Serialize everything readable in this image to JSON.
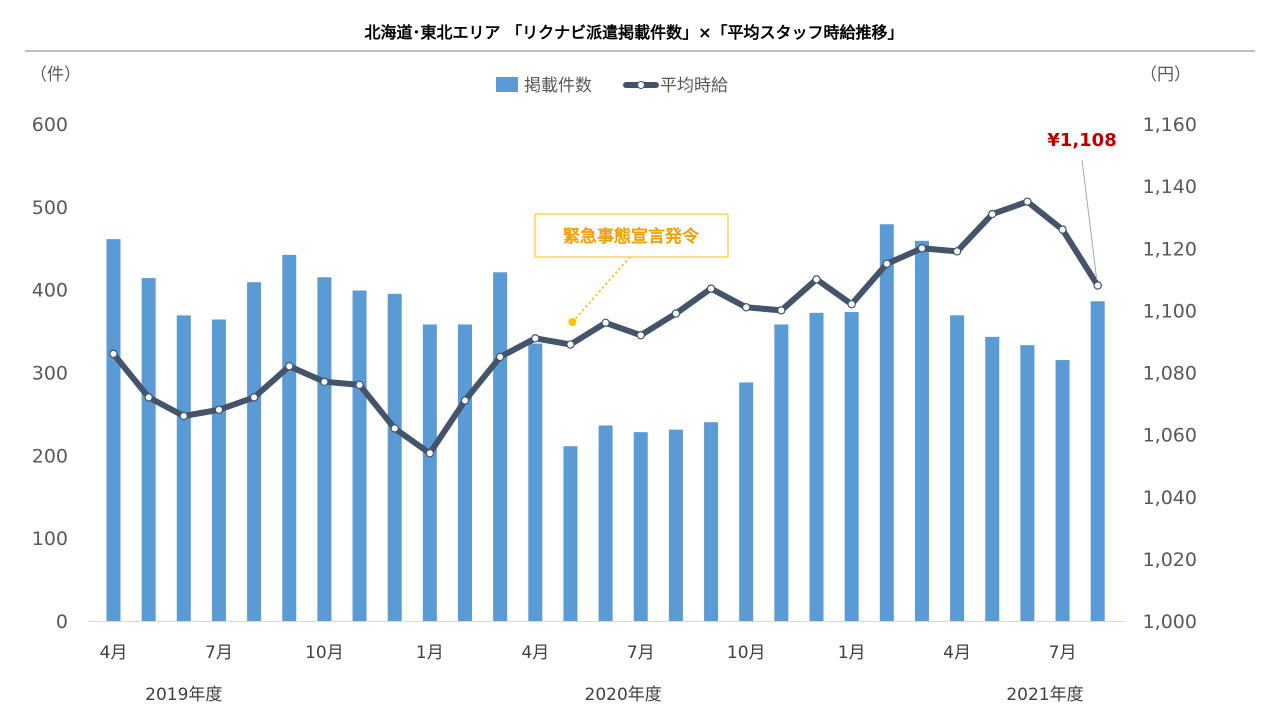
{
  "chart_data": {
    "type": "bar",
    "title": "北海道･東北エリア 「リクナビ派遣掲載件数」×「平均スタッフ時給推移」",
    "y_left_unit": "（件）",
    "y_right_unit": "（円）",
    "y_left_ticks": [
      "0",
      "100",
      "200",
      "300",
      "400",
      "500",
      "600"
    ],
    "y_right_ticks": [
      "1,000",
      "1,020",
      "1,040",
      "1,060",
      "1,080",
      "1,100",
      "1,120",
      "1,140",
      "1,160"
    ],
    "ylim_left": [
      0,
      600
    ],
    "ylim_right": [
      1000,
      1160
    ],
    "x_tick_labels": [
      "4月",
      "7月",
      "10月",
      "1月",
      "4月",
      "7月",
      "10月",
      "1月",
      "4月",
      "7月"
    ],
    "x_tick_index": [
      0,
      3,
      6,
      9,
      12,
      15,
      18,
      21,
      24,
      27
    ],
    "year_labels": [
      "2019年度",
      "2020年度",
      "2021年度"
    ],
    "year_label_index": [
      2,
      14.5,
      26.5
    ],
    "categories": [
      "2019-04",
      "2019-05",
      "2019-06",
      "2019-07",
      "2019-08",
      "2019-09",
      "2019-10",
      "2019-11",
      "2019-12",
      "2020-01",
      "2020-02",
      "2020-03",
      "2020-04",
      "2020-05",
      "2020-06",
      "2020-07",
      "2020-08",
      "2020-09",
      "2020-10",
      "2020-11",
      "2020-12",
      "2021-01",
      "2021-02",
      "2021-03",
      "2021-04",
      "2021-05",
      "2021-06",
      "2021-07",
      "2021-08"
    ],
    "series": [
      {
        "name": "掲載件数",
        "kind": "bar",
        "axis": "left",
        "color": "#5b9bd5",
        "values": [
          461,
          414,
          369,
          364,
          409,
          442,
          415,
          399,
          395,
          358,
          358,
          421,
          335,
          211,
          236,
          228,
          231,
          240,
          288,
          358,
          372,
          373,
          479,
          459,
          369,
          343,
          333,
          315,
          386
        ]
      },
      {
        "name": "平均時給",
        "kind": "line",
        "axis": "right",
        "color": "#44546a",
        "values": [
          1086,
          1072,
          1066,
          1068,
          1072,
          1082,
          1077,
          1076,
          1062,
          1054,
          1071,
          1085,
          1091,
          1089,
          1096,
          1092,
          1099,
          1107,
          1101,
          1100,
          1110,
          1102,
          1115,
          1120,
          1119,
          1131,
          1135,
          1126,
          1108
        ]
      }
    ],
    "annotation_event": {
      "label": "緊急事態宣言発令",
      "at_index": 13
    },
    "annotation_value": {
      "label": "¥1,108",
      "at_index": 28
    },
    "legend_position": "top-center",
    "grid": false
  }
}
